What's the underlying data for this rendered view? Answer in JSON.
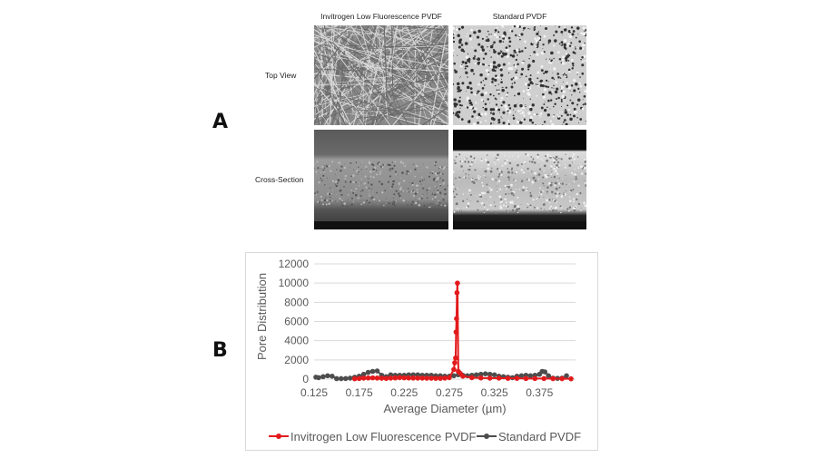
{
  "panel_a": {
    "letter": "A",
    "columns": [
      "Invitrogen Low Fluorescence PVDF",
      "Standard PVDF"
    ],
    "rows": [
      "Top View",
      "Cross-Section"
    ]
  },
  "panel_b": {
    "letter": "B"
  },
  "chart_data": {
    "type": "line",
    "title": "",
    "xlabel": "Average Diameter (µm)",
    "ylabel": "Pore Distribution",
    "xlim": [
      0.125,
      0.415
    ],
    "ylim": [
      0,
      12000
    ],
    "x_ticks": [
      "0.125",
      "0.175",
      "0.225",
      "0.275",
      "0.325",
      "0.375"
    ],
    "y_ticks": [
      "0",
      "2000",
      "4000",
      "6000",
      "8000",
      "10000",
      "12000"
    ],
    "grid": "horizontal",
    "legend": "bottom",
    "series": [
      {
        "name": "Invitrogen Low Fluorescence PVDF",
        "color": "#e31a1c",
        "x": [
          0.17,
          0.175,
          0.18,
          0.185,
          0.19,
          0.195,
          0.2,
          0.205,
          0.21,
          0.215,
          0.22,
          0.225,
          0.23,
          0.235,
          0.24,
          0.245,
          0.25,
          0.255,
          0.26,
          0.265,
          0.27,
          0.275,
          0.28,
          0.281,
          0.282,
          0.2825,
          0.283,
          0.2835,
          0.284,
          0.285,
          0.287,
          0.29,
          0.3,
          0.31,
          0.32,
          0.33,
          0.34,
          0.35,
          0.36,
          0.37,
          0.38,
          0.39,
          0.4,
          0.41
        ],
        "y": [
          30,
          60,
          100,
          120,
          130,
          110,
          90,
          70,
          100,
          120,
          150,
          130,
          120,
          110,
          100,
          100,
          90,
          90,
          80,
          80,
          100,
          150,
          1000,
          1700,
          2200,
          4900,
          6300,
          9000,
          10000,
          800,
          600,
          300,
          150,
          120,
          100,
          100,
          80,
          80,
          60,
          60,
          60,
          50,
          40,
          30
        ]
      },
      {
        "name": "Standard PVDF",
        "color": "#4d4d4d",
        "x": [
          0.127,
          0.13,
          0.135,
          0.14,
          0.145,
          0.15,
          0.155,
          0.16,
          0.165,
          0.17,
          0.175,
          0.18,
          0.185,
          0.19,
          0.195,
          0.2,
          0.205,
          0.21,
          0.215,
          0.22,
          0.225,
          0.23,
          0.235,
          0.24,
          0.245,
          0.25,
          0.255,
          0.26,
          0.265,
          0.27,
          0.275,
          0.28,
          0.285,
          0.29,
          0.295,
          0.3,
          0.305,
          0.31,
          0.315,
          0.32,
          0.325,
          0.33,
          0.335,
          0.34,
          0.345,
          0.35,
          0.355,
          0.36,
          0.365,
          0.37,
          0.375,
          0.378,
          0.381,
          0.385,
          0.39,
          0.395,
          0.4,
          0.405
        ],
        "y": [
          200,
          150,
          250,
          350,
          300,
          50,
          50,
          60,
          100,
          200,
          300,
          500,
          700,
          800,
          850,
          400,
          250,
          450,
          400,
          400,
          400,
          450,
          450,
          450,
          400,
          400,
          400,
          350,
          350,
          300,
          300,
          350,
          450,
          400,
          350,
          400,
          450,
          500,
          550,
          500,
          450,
          300,
          250,
          200,
          150,
          300,
          350,
          400,
          350,
          400,
          500,
          800,
          750,
          350,
          100,
          80,
          100,
          350
        ]
      }
    ]
  }
}
